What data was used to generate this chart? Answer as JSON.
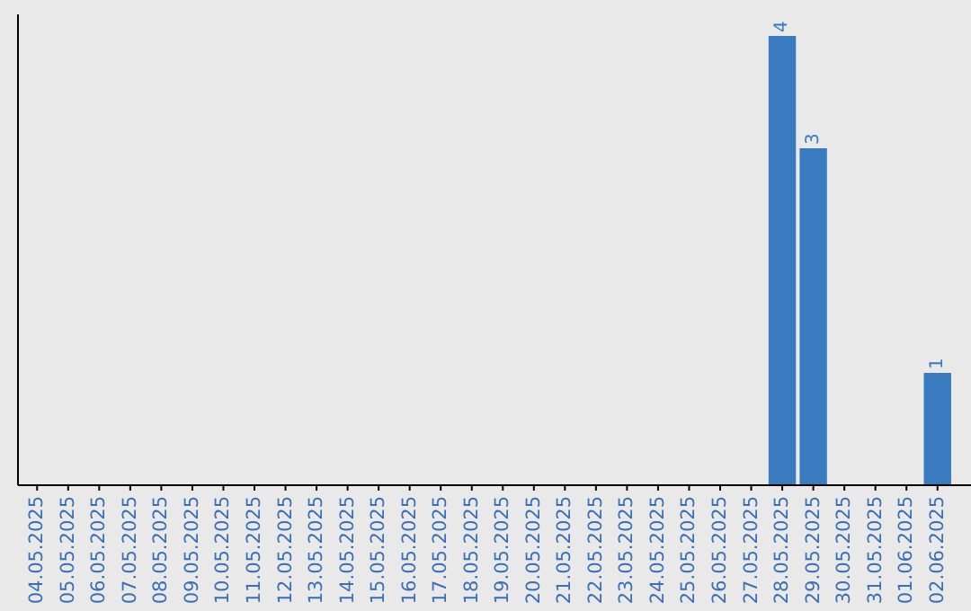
{
  "chart_data": {
    "type": "bar",
    "categories": [
      "04.05.2025",
      "05.05.2025",
      "06.05.2025",
      "07.05.2025",
      "08.05.2025",
      "09.05.2025",
      "10.05.2025",
      "11.05.2025",
      "12.05.2025",
      "13.05.2025",
      "14.05.2025",
      "15.05.2025",
      "16.05.2025",
      "17.05.2025",
      "18.05.2025",
      "19.05.2025",
      "20.05.2025",
      "21.05.2025",
      "22.05.2025",
      "23.05.2025",
      "24.05.2025",
      "25.05.2025",
      "26.05.2025",
      "27.05.2025",
      "28.05.2025",
      "29.05.2025",
      "30.05.2025",
      "31.05.2025",
      "01.06.2025",
      "02.06.2025"
    ],
    "values": [
      null,
      null,
      null,
      null,
      null,
      null,
      null,
      null,
      null,
      null,
      null,
      null,
      null,
      null,
      null,
      null,
      null,
      null,
      null,
      null,
      null,
      null,
      null,
      null,
      4,
      3,
      null,
      null,
      null,
      1
    ],
    "value_labels": [
      null,
      null,
      null,
      null,
      null,
      null,
      null,
      null,
      null,
      null,
      null,
      null,
      null,
      null,
      null,
      null,
      null,
      null,
      null,
      null,
      null,
      null,
      null,
      null,
      "4",
      "3",
      null,
      null,
      null,
      "1"
    ],
    "color": "#3a7bbf",
    "tick_labels": "x"
  }
}
